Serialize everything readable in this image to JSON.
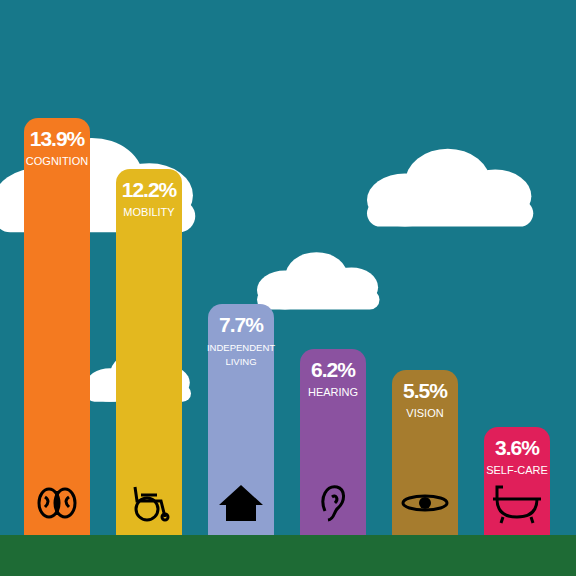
{
  "chart_data": {
    "type": "bar",
    "categories": [
      "COGNITION",
      "MOBILITY",
      "INDEPENDENT LIVING",
      "HEARING",
      "VISION",
      "SELF-CARE"
    ],
    "values": [
      13.9,
      12.2,
      7.7,
      6.2,
      5.5,
      3.6
    ],
    "value_labels": [
      "13.9%",
      "12.2%",
      "7.7%",
      "6.2%",
      "5.5%",
      "3.6%"
    ],
    "data_labels": true,
    "colors": [
      "#f47a20",
      "#e3b81f",
      "#8fa0d0",
      "#8b52a0",
      "#a67c2e",
      "#e01f5a"
    ],
    "ylim": [
      0,
      15
    ],
    "yticks": [
      0,
      5,
      10,
      15
    ],
    "tick_labels": false,
    "grid": false
  }
}
